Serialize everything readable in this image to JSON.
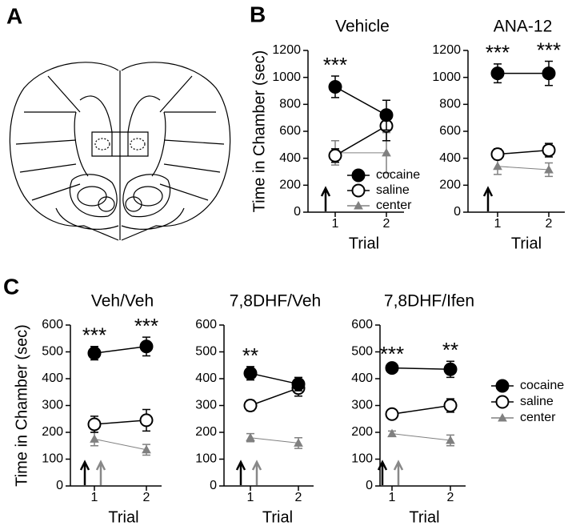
{
  "panel_labels": [
    "A",
    "B",
    "C"
  ],
  "chart_data": [
    {
      "type": "line",
      "title": "Vehicle",
      "xlabel": "Trial",
      "ylabel": "Time in Chamber (sec)",
      "categories": [
        "1",
        "2"
      ],
      "ylim": [
        0,
        1200
      ],
      "yticks": [
        0,
        200,
        400,
        600,
        800,
        1000,
        1200
      ],
      "annotations": [
        "***",
        null
      ],
      "legend": "lower right",
      "series": [
        {
          "name": "cocaine",
          "color": "#000000",
          "fill": "#000000",
          "marker": "circle",
          "values": [
            930,
            720
          ],
          "errors": [
            80,
            110
          ]
        },
        {
          "name": "saline",
          "color": "#000000",
          "fill": "#ffffff",
          "marker": "circle",
          "values": [
            420,
            640
          ],
          "errors": [
            50,
            110
          ]
        },
        {
          "name": "center",
          "color": "#808080",
          "fill": "#808080",
          "marker": "triangle",
          "values": [
            440,
            440
          ],
          "errors": [
            90,
            150
          ]
        }
      ]
    },
    {
      "type": "line",
      "title": "ANA-12",
      "xlabel": "Trial",
      "categories": [
        "1",
        "2"
      ],
      "ylim": [
        0,
        1200
      ],
      "yticks": [
        0,
        200,
        400,
        600,
        800,
        1000,
        1200
      ],
      "annotations": [
        "***",
        "***"
      ],
      "series": [
        {
          "name": "cocaine",
          "color": "#000000",
          "fill": "#000000",
          "marker": "circle",
          "values": [
            1030,
            1030
          ],
          "errors": [
            70,
            90
          ]
        },
        {
          "name": "saline",
          "color": "#000000",
          "fill": "#ffffff",
          "marker": "circle",
          "values": [
            430,
            460
          ],
          "errors": [
            40,
            50
          ]
        },
        {
          "name": "center",
          "color": "#808080",
          "fill": "#808080",
          "marker": "triangle",
          "values": [
            340,
            315
          ],
          "errors": [
            60,
            50
          ]
        }
      ]
    },
    {
      "type": "line",
      "title": "Veh/Veh",
      "xlabel": "Trial",
      "ylabel": "Time in Chamber (sec)",
      "categories": [
        "1",
        "2"
      ],
      "ylim": [
        0,
        600
      ],
      "yticks": [
        0,
        100,
        200,
        300,
        400,
        500,
        600
      ],
      "annotations": [
        "***",
        "***"
      ],
      "series": [
        {
          "name": "cocaine",
          "color": "#000000",
          "fill": "#000000",
          "marker": "circle",
          "values": [
            495,
            520
          ],
          "errors": [
            25,
            35
          ]
        },
        {
          "name": "saline",
          "color": "#000000",
          "fill": "#ffffff",
          "marker": "circle",
          "values": [
            230,
            245
          ],
          "errors": [
            30,
            40
          ]
        },
        {
          "name": "center",
          "color": "#808080",
          "fill": "#808080",
          "marker": "triangle",
          "values": [
            175,
            135
          ],
          "errors": [
            25,
            20
          ]
        }
      ]
    },
    {
      "type": "line",
      "title": "7,8DHF/Veh",
      "xlabel": "Trial",
      "categories": [
        "1",
        "2"
      ],
      "ylim": [
        0,
        600
      ],
      "yticks": [
        0,
        100,
        200,
        300,
        400,
        500,
        600
      ],
      "annotations": [
        "**",
        null
      ],
      "series": [
        {
          "name": "cocaine",
          "color": "#000000",
          "fill": "#000000",
          "marker": "circle",
          "values": [
            420,
            380
          ],
          "errors": [
            25,
            25
          ]
        },
        {
          "name": "saline",
          "color": "#000000",
          "fill": "#ffffff",
          "marker": "circle",
          "values": [
            300,
            365
          ],
          "errors": [
            20,
            30
          ]
        },
        {
          "name": "center",
          "color": "#808080",
          "fill": "#808080",
          "marker": "triangle",
          "values": [
            180,
            160
          ],
          "errors": [
            15,
            20
          ]
        }
      ]
    },
    {
      "type": "line",
      "title": "7,8DHF/Ifen",
      "xlabel": "Trial",
      "categories": [
        "1",
        "2"
      ],
      "ylim": [
        0,
        600
      ],
      "yticks": [
        0,
        100,
        200,
        300,
        400,
        500,
        600
      ],
      "annotations": [
        "***",
        "**"
      ],
      "legend": "outside right",
      "series": [
        {
          "name": "cocaine",
          "color": "#000000",
          "fill": "#000000",
          "marker": "circle",
          "values": [
            440,
            435
          ],
          "errors": [
            10,
            30
          ]
        },
        {
          "name": "saline",
          "color": "#000000",
          "fill": "#ffffff",
          "marker": "circle",
          "values": [
            268,
            300
          ],
          "errors": [
            15,
            25
          ]
        },
        {
          "name": "center",
          "color": "#808080",
          "fill": "#808080",
          "marker": "triangle",
          "values": [
            195,
            170
          ],
          "errors": [
            10,
            20
          ]
        }
      ]
    }
  ]
}
